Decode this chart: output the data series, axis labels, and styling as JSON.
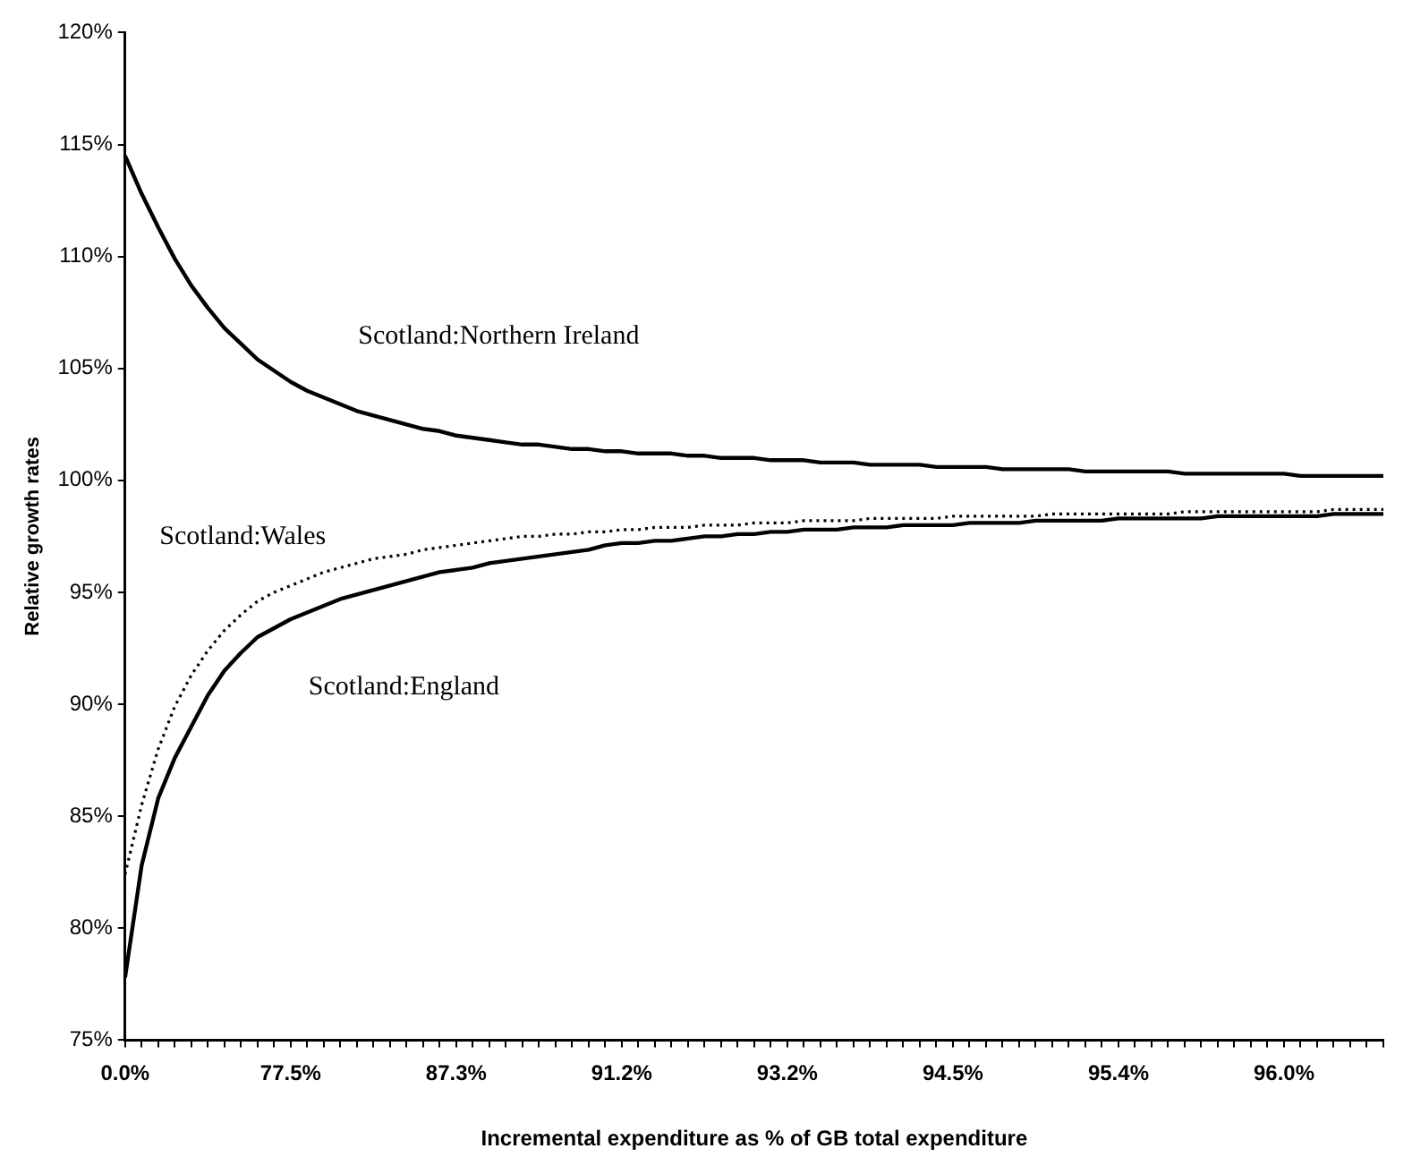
{
  "chart_data": {
    "type": "line",
    "xlabel": "Incremental expenditure as % of GB total expenditure",
    "ylabel": "Relative growth rates",
    "categories": [
      "0.0%",
      null,
      null,
      null,
      null,
      null,
      null,
      null,
      null,
      null,
      "77.5%",
      null,
      null,
      null,
      null,
      null,
      null,
      null,
      null,
      null,
      "87.3%",
      null,
      null,
      null,
      null,
      null,
      null,
      null,
      null,
      null,
      "91.2%",
      null,
      null,
      null,
      null,
      null,
      null,
      null,
      null,
      null,
      "93.2%",
      null,
      null,
      null,
      null,
      null,
      null,
      null,
      null,
      null,
      "94.5%",
      null,
      null,
      null,
      null,
      null,
      null,
      null,
      null,
      null,
      "95.4%",
      null,
      null,
      null,
      null,
      null,
      null,
      null,
      null,
      null,
      "96.0%",
      null,
      null,
      null,
      null,
      null,
      null
    ],
    "series": [
      {
        "name": "Scotland:Northern Ireland",
        "color": "#000000",
        "line_style": "solid",
        "values": [
          114.5,
          112.8,
          111.3,
          109.9,
          108.7,
          107.7,
          106.8,
          106.1,
          105.4,
          104.9,
          104.4,
          104.0,
          103.7,
          103.4,
          103.1,
          102.9,
          102.7,
          102.5,
          102.3,
          102.2,
          102.0,
          101.9,
          101.8,
          101.7,
          101.6,
          101.6,
          101.5,
          101.4,
          101.4,
          101.3,
          101.3,
          101.2,
          101.2,
          101.2,
          101.1,
          101.1,
          101.0,
          101.0,
          101.0,
          100.9,
          100.9,
          100.9,
          100.8,
          100.8,
          100.8,
          100.7,
          100.7,
          100.7,
          100.7,
          100.6,
          100.6,
          100.6,
          100.6,
          100.5,
          100.5,
          100.5,
          100.5,
          100.5,
          100.4,
          100.4,
          100.4,
          100.4,
          100.4,
          100.4,
          100.3,
          100.3,
          100.3,
          100.3,
          100.3,
          100.3,
          100.3,
          100.2,
          100.2,
          100.2,
          100.2,
          100.2,
          100.2
        ]
      },
      {
        "name": "Scotland:Wales",
        "color": "#000000",
        "line_style": "dotted",
        "values": [
          82.4,
          85.5,
          88.0,
          89.9,
          91.3,
          92.4,
          93.3,
          94.0,
          94.6,
          95.0,
          95.3,
          95.6,
          95.9,
          96.1,
          96.3,
          96.5,
          96.6,
          96.7,
          96.9,
          97.0,
          97.1,
          97.2,
          97.3,
          97.4,
          97.5,
          97.5,
          97.6,
          97.6,
          97.7,
          97.7,
          97.8,
          97.8,
          97.9,
          97.9,
          97.9,
          98.0,
          98.0,
          98.0,
          98.1,
          98.1,
          98.1,
          98.2,
          98.2,
          98.2,
          98.2,
          98.3,
          98.3,
          98.3,
          98.3,
          98.3,
          98.4,
          98.4,
          98.4,
          98.4,
          98.4,
          98.4,
          98.5,
          98.5,
          98.5,
          98.5,
          98.5,
          98.5,
          98.5,
          98.5,
          98.6,
          98.6,
          98.6,
          98.6,
          98.6,
          98.6,
          98.6,
          98.6,
          98.6,
          98.7,
          98.7,
          98.7,
          98.7
        ]
      },
      {
        "name": "Scotland:England",
        "color": "#000000",
        "line_style": "solid",
        "values": [
          77.8,
          82.8,
          85.8,
          87.6,
          89.0,
          90.4,
          91.5,
          92.3,
          93.0,
          93.4,
          93.8,
          94.1,
          94.4,
          94.7,
          94.9,
          95.1,
          95.3,
          95.5,
          95.7,
          95.9,
          96.0,
          96.1,
          96.3,
          96.4,
          96.5,
          96.6,
          96.7,
          96.8,
          96.9,
          97.1,
          97.2,
          97.2,
          97.3,
          97.3,
          97.4,
          97.5,
          97.5,
          97.6,
          97.6,
          97.7,
          97.7,
          97.8,
          97.8,
          97.8,
          97.9,
          97.9,
          97.9,
          98.0,
          98.0,
          98.0,
          98.0,
          98.1,
          98.1,
          98.1,
          98.1,
          98.2,
          98.2,
          98.2,
          98.2,
          98.2,
          98.3,
          98.3,
          98.3,
          98.3,
          98.3,
          98.3,
          98.4,
          98.4,
          98.4,
          98.4,
          98.4,
          98.4,
          98.4,
          98.5,
          98.5,
          98.5,
          98.5
        ]
      }
    ],
    "ylim": [
      75,
      120
    ],
    "yticks": [
      {
        "value": 75,
        "label": "75%"
      },
      {
        "value": 80,
        "label": "80%"
      },
      {
        "value": 85,
        "label": "85%"
      },
      {
        "value": 90,
        "label": "90%"
      },
      {
        "value": 95,
        "label": "95%"
      },
      {
        "value": 100,
        "label": "100%"
      },
      {
        "value": 105,
        "label": "105%"
      },
      {
        "value": 110,
        "label": "110%"
      },
      {
        "value": 115,
        "label": "115%"
      },
      {
        "value": 120,
        "label": "120%"
      }
    ],
    "grid": false,
    "legend": false,
    "marker": "none"
  }
}
